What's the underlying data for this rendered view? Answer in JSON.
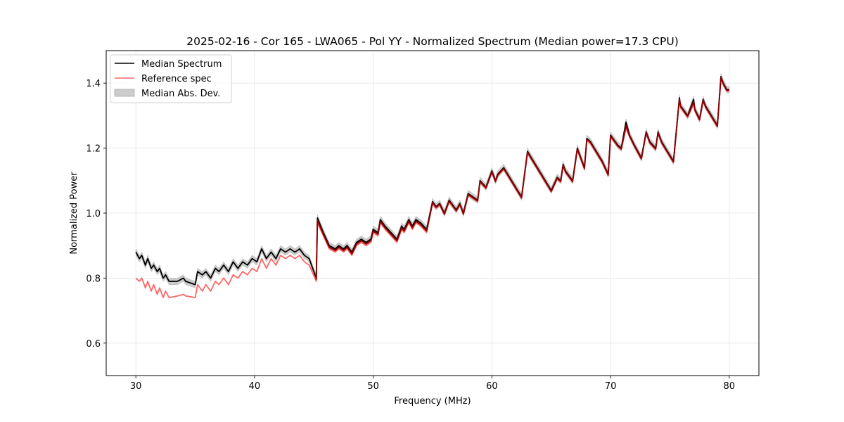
{
  "chart_data": {
    "type": "line",
    "title": "2025-02-16 - Cor 165 - LWA065 - Pol YY - Normalized Spectrum (Median power=17.3 CPU)",
    "xlabel": "Frequency (MHz)",
    "ylabel": "Normalized Power",
    "xlim": [
      27.5,
      82.5
    ],
    "ylim": [
      0.5,
      1.5
    ],
    "xticks": [
      30,
      40,
      50,
      60,
      70,
      80
    ],
    "xtick_labels": [
      "30",
      "40",
      "50",
      "60",
      "70",
      "80"
    ],
    "yticks": [
      0.6,
      0.8,
      1.0,
      1.2,
      1.4
    ],
    "ytick_labels": [
      "0.6",
      "0.8",
      "1.0",
      "1.2",
      "1.4"
    ],
    "grid": true,
    "legend_position": "top-left",
    "legend": [
      {
        "label": "Median Spectrum",
        "type": "line",
        "color": "#000000"
      },
      {
        "label": "Reference spec",
        "type": "line",
        "color": "#ff6666"
      },
      {
        "label": "Median Abs. Dev.",
        "type": "band",
        "color": "#cccccc"
      }
    ],
    "series": [
      {
        "name": "Median Spectrum",
        "color": "#000000",
        "x": [
          30.0,
          30.3,
          30.5,
          30.8,
          31.0,
          31.3,
          31.5,
          31.8,
          32.0,
          32.3,
          32.5,
          32.8,
          33.5,
          34.0,
          34.2,
          35.0,
          35.2,
          35.6,
          35.9,
          36.3,
          36.7,
          37.0,
          37.4,
          37.8,
          38.2,
          38.6,
          39.0,
          39.4,
          39.8,
          40.2,
          40.6,
          41.0,
          41.4,
          41.8,
          42.2,
          42.6,
          43.0,
          43.4,
          43.8,
          44.2,
          44.6,
          45.2,
          45.3,
          45.8,
          46.3,
          46.8,
          47.1,
          47.5,
          47.8,
          48.2,
          48.6,
          49.0,
          49.4,
          49.8,
          50.0,
          50.4,
          50.6,
          51.0,
          51.5,
          52.0,
          52.4,
          52.6,
          53.0,
          53.3,
          53.6,
          54.0,
          54.5,
          55.0,
          55.3,
          55.6,
          56.0,
          56.4,
          56.8,
          57.0,
          57.3,
          57.6,
          58.0,
          58.4,
          58.8,
          59.0,
          59.5,
          60.0,
          60.3,
          60.5,
          61.0,
          61.5,
          62.0,
          62.5,
          63.0,
          63.5,
          64.0,
          64.5,
          65.0,
          65.5,
          65.8,
          66.0,
          66.2,
          66.8,
          67.2,
          67.5,
          67.8,
          68.0,
          68.3,
          68.8,
          69.3,
          69.8,
          70.0,
          70.2,
          70.6,
          70.9,
          71.3,
          71.6,
          72.0,
          72.6,
          73.0,
          73.3,
          73.8,
          74.0,
          74.3,
          74.8,
          75.3,
          75.8,
          75.9,
          76.5,
          77.0,
          77.1,
          77.5,
          77.8,
          78.0,
          78.5,
          79.0,
          79.3,
          79.5,
          79.8,
          80.0
        ],
        "y": [
          0.88,
          0.86,
          0.87,
          0.84,
          0.86,
          0.83,
          0.84,
          0.82,
          0.83,
          0.8,
          0.81,
          0.79,
          0.79,
          0.8,
          0.79,
          0.78,
          0.82,
          0.81,
          0.82,
          0.8,
          0.83,
          0.82,
          0.84,
          0.82,
          0.85,
          0.83,
          0.85,
          0.84,
          0.86,
          0.85,
          0.89,
          0.86,
          0.88,
          0.86,
          0.89,
          0.88,
          0.89,
          0.88,
          0.89,
          0.87,
          0.86,
          0.8,
          0.985,
          0.94,
          0.9,
          0.89,
          0.9,
          0.89,
          0.9,
          0.88,
          0.91,
          0.92,
          0.91,
          0.92,
          0.95,
          0.94,
          0.98,
          0.96,
          0.94,
          0.92,
          0.96,
          0.95,
          0.98,
          0.96,
          0.98,
          0.97,
          0.95,
          1.035,
          1.02,
          1.03,
          1.0,
          1.04,
          1.02,
          1.01,
          1.03,
          1.0,
          1.06,
          1.05,
          1.04,
          1.1,
          1.08,
          1.13,
          1.1,
          1.12,
          1.14,
          1.11,
          1.08,
          1.05,
          1.19,
          1.16,
          1.13,
          1.1,
          1.07,
          1.11,
          1.1,
          1.15,
          1.13,
          1.1,
          1.2,
          1.17,
          1.14,
          1.23,
          1.22,
          1.19,
          1.16,
          1.12,
          1.24,
          1.23,
          1.21,
          1.2,
          1.28,
          1.24,
          1.21,
          1.17,
          1.25,
          1.22,
          1.2,
          1.25,
          1.22,
          1.19,
          1.16,
          1.355,
          1.33,
          1.3,
          1.35,
          1.32,
          1.29,
          1.35,
          1.33,
          1.3,
          1.27,
          1.42,
          1.4,
          1.38,
          1.38
        ]
      },
      {
        "name": "Reference spec",
        "color": "#ff6666",
        "x": [
          30.0,
          30.3,
          30.5,
          30.8,
          31.0,
          31.3,
          31.5,
          31.8,
          32.0,
          32.3,
          32.5,
          32.8,
          33.5,
          34.0,
          34.2,
          35.0,
          35.2,
          35.6,
          35.9,
          36.3,
          36.7,
          37.0,
          37.4,
          37.8,
          38.2,
          38.6,
          39.0,
          39.4,
          39.8,
          40.2,
          40.6,
          41.0,
          41.4,
          41.8,
          42.2,
          42.6,
          43.0,
          43.4,
          43.8,
          44.2,
          44.6,
          45.2,
          45.3,
          45.8,
          46.3,
          46.8,
          47.1,
          47.5,
          47.8,
          48.2,
          48.6,
          49.0,
          49.4,
          49.8,
          50.0,
          50.4,
          50.6,
          51.0,
          51.5,
          52.0,
          52.4,
          52.6,
          53.0,
          53.3,
          53.6,
          54.0,
          54.5,
          55.0,
          55.3,
          55.6,
          56.0,
          56.4,
          56.8,
          57.0,
          57.3,
          57.6,
          58.0,
          58.4,
          58.8,
          59.0,
          59.5,
          60.0,
          60.3,
          60.5,
          61.0,
          61.5,
          62.0,
          62.5,
          63.0,
          63.5,
          64.0,
          64.5,
          65.0,
          65.5,
          65.8,
          66.0,
          66.2,
          66.8,
          67.2,
          67.5,
          67.8,
          68.0,
          68.3,
          68.8,
          69.3,
          69.8,
          70.0,
          70.2,
          70.6,
          70.9,
          71.3,
          71.6,
          72.0,
          72.6,
          73.0,
          73.3,
          73.8,
          74.0,
          74.3,
          74.8,
          75.3,
          75.8,
          75.9,
          76.5,
          77.0,
          77.1,
          77.5,
          77.8,
          78.0,
          78.5,
          79.0,
          79.3,
          79.5,
          79.8,
          80.0
        ],
        "y": [
          0.8,
          0.79,
          0.8,
          0.77,
          0.79,
          0.76,
          0.78,
          0.75,
          0.77,
          0.74,
          0.76,
          0.74,
          0.745,
          0.75,
          0.745,
          0.74,
          0.78,
          0.76,
          0.78,
          0.76,
          0.79,
          0.78,
          0.8,
          0.78,
          0.81,
          0.8,
          0.82,
          0.81,
          0.83,
          0.82,
          0.86,
          0.83,
          0.86,
          0.84,
          0.87,
          0.86,
          0.87,
          0.86,
          0.87,
          0.85,
          0.84,
          0.79,
          0.97,
          0.93,
          0.89,
          0.88,
          0.89,
          0.88,
          0.89,
          0.87,
          0.9,
          0.91,
          0.9,
          0.91,
          0.94,
          0.93,
          0.97,
          0.95,
          0.93,
          0.91,
          0.95,
          0.94,
          0.97,
          0.95,
          0.97,
          0.96,
          0.94,
          1.03,
          1.015,
          1.025,
          0.995,
          1.035,
          1.015,
          1.005,
          1.025,
          0.995,
          1.055,
          1.045,
          1.035,
          1.095,
          1.075,
          1.125,
          1.095,
          1.115,
          1.135,
          1.105,
          1.075,
          1.045,
          1.185,
          1.155,
          1.125,
          1.095,
          1.065,
          1.105,
          1.095,
          1.145,
          1.125,
          1.095,
          1.195,
          1.165,
          1.135,
          1.225,
          1.215,
          1.185,
          1.155,
          1.115,
          1.235,
          1.225,
          1.205,
          1.195,
          1.26,
          1.235,
          1.205,
          1.165,
          1.245,
          1.215,
          1.195,
          1.245,
          1.215,
          1.185,
          1.155,
          1.35,
          1.325,
          1.295,
          1.335,
          1.315,
          1.285,
          1.345,
          1.325,
          1.295,
          1.265,
          1.415,
          1.395,
          1.375,
          1.375
        ]
      }
    ],
    "band": {
      "name": "Median Abs. Dev.",
      "color": "#cccccc",
      "half_width": 0.01
    }
  }
}
